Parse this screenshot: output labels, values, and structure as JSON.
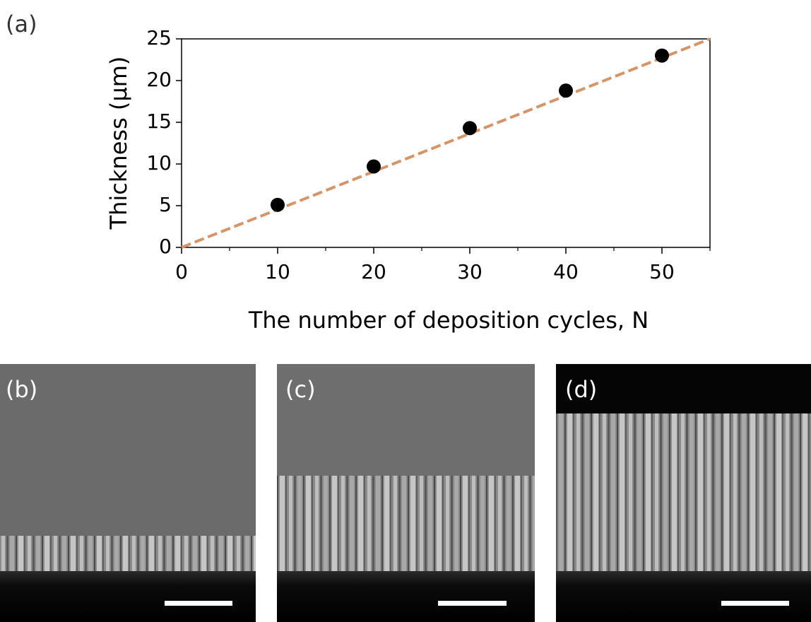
{
  "chart_data": {
    "type": "scatter",
    "panel_label": "(a)",
    "ylabel": "Thickness (μm)",
    "xlabel": "The number of deposition cycles, N",
    "x": [
      10,
      20,
      30,
      40,
      50
    ],
    "values": [
      5.1,
      9.7,
      14.3,
      18.8,
      23.0
    ],
    "color": "#000000",
    "fit": {
      "x": [
        0,
        55
      ],
      "values": [
        0,
        25
      ],
      "color": "#d4956a",
      "dashed": true
    },
    "xlim": [
      0,
      55
    ],
    "ylim": [
      0,
      25
    ],
    "xticks": [
      0,
      10,
      20,
      30,
      40,
      50
    ],
    "yticks": [
      0,
      5,
      10,
      15,
      20,
      25
    ],
    "xticks_minor": [
      5,
      15,
      25,
      35,
      45,
      55
    ],
    "grid": false
  },
  "images": [
    {
      "label": "(b)"
    },
    {
      "label": "(c)"
    },
    {
      "label": "(d)"
    }
  ]
}
